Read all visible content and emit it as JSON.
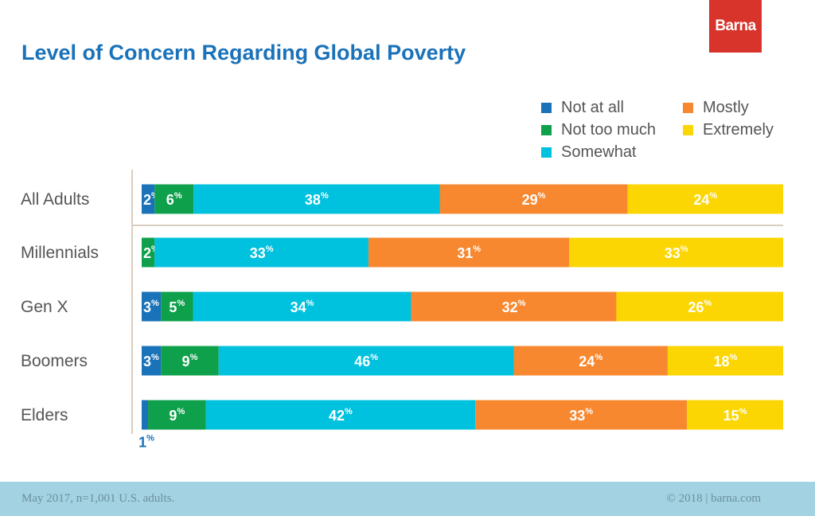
{
  "brand": {
    "logo_text": "Barna",
    "logo_color": "#d9342b"
  },
  "footer": {
    "note": "May 2017, n=1,001 U.S. adults.",
    "copyright": "© 2018 | barna.com"
  },
  "chart_data": {
    "type": "bar",
    "orientation": "horizontal",
    "stacked": true,
    "title": "Level of Concern Regarding Global Poverty",
    "categories": [
      "All Adults",
      "Millennials",
      "Gen X",
      "Boomers",
      "Elders"
    ],
    "unit": "%",
    "series": [
      {
        "name": "Not at all",
        "color": "#1a72b9",
        "values": [
          2,
          0,
          3,
          3,
          1
        ]
      },
      {
        "name": "Not too much",
        "color": "#0fa04b",
        "values": [
          6,
          2,
          5,
          9,
          9
        ]
      },
      {
        "name": "Somewhat",
        "color": "#00c1de",
        "values": [
          38,
          33,
          34,
          46,
          42
        ]
      },
      {
        "name": "Mostly",
        "color": "#f7882f",
        "values": [
          29,
          31,
          32,
          24,
          33
        ]
      },
      {
        "name": "Extremely",
        "color": "#fcd602",
        "values": [
          24,
          33,
          26,
          18,
          15
        ]
      }
    ],
    "legend_position": "top-right",
    "grid": false
  }
}
